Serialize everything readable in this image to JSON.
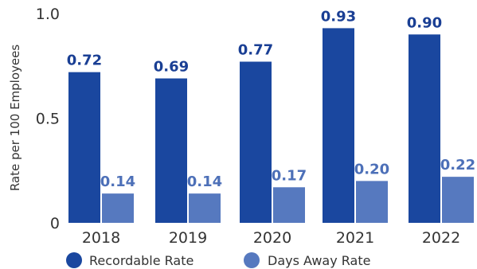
{
  "chart_data": {
    "type": "bar",
    "categories": [
      "2018",
      "2019",
      "2020",
      "2021",
      "2022"
    ],
    "series": [
      {
        "name": "Recordable Rate",
        "values": [
          0.72,
          0.69,
          0.77,
          0.93,
          0.9
        ],
        "labels": [
          "0.72",
          "0.69",
          "0.77",
          "0.93",
          "0.90"
        ],
        "color": "#1a479f",
        "label_color": "#1a3f94"
      },
      {
        "name": "Days Away Rate",
        "values": [
          0.14,
          0.14,
          0.17,
          0.2,
          0.22
        ],
        "labels": [
          "0.14",
          "0.14",
          "0.17",
          "0.20",
          "0.22"
        ],
        "color": "#5679bf",
        "label_color": "#4d70b8"
      }
    ],
    "title": "",
    "xlabel": "",
    "ylabel": "Rate per 100 Employees",
    "ylim": [
      0,
      1.0
    ],
    "yticks": [
      {
        "value": 0,
        "label": "0"
      },
      {
        "value": 0.5,
        "label": "0.5"
      },
      {
        "value": 1.0,
        "label": "1.0"
      }
    ],
    "grid": false,
    "legend_position": "bottom-left"
  }
}
